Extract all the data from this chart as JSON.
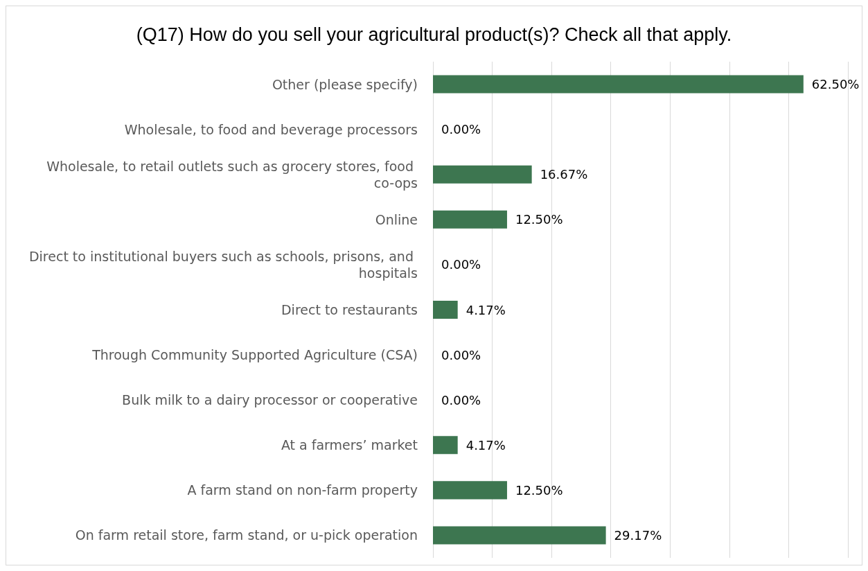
{
  "chart_data": {
    "type": "bar",
    "orientation": "horizontal",
    "title": "(Q17) How do you sell your agricultural product(s)? Check all that apply.",
    "categories": [
      "Other (please specify)",
      "Wholesale, to food and beverage processors",
      "Wholesale, to retail outlets such as grocery stores, food co-ops",
      "Online",
      "Direct to institutional buyers such as schools, prisons, and hospitals",
      "Direct to restaurants",
      "Through Community Supported Agriculture (CSA)",
      "Bulk milk to a dairy processor or cooperative",
      "At a farmers’ market",
      "A farm stand on non-farm property",
      "On farm retail store, farm stand, or u-pick operation"
    ],
    "values": [
      62.5,
      0,
      16.67,
      12.5,
      0,
      4.17,
      0,
      0,
      4.17,
      12.5,
      29.17
    ],
    "value_labels": [
      "62.50%",
      "0.00%",
      "16.67%",
      "12.50%",
      "0.00%",
      "4.17%",
      "0.00%",
      "0.00%",
      "4.17%",
      "12.50%",
      "29.17%"
    ],
    "color": "#3d7650",
    "xlim": [
      0,
      70
    ],
    "xticks": [
      {
        "value": 0,
        "label": null
      },
      {
        "value": 10,
        "label": null
      },
      {
        "value": 20,
        "label": null
      },
      {
        "value": 30,
        "label": null
      },
      {
        "value": 40,
        "label": null
      },
      {
        "value": 50,
        "label": null
      },
      {
        "value": 60,
        "label": null
      },
      {
        "value": 70,
        "label": null
      }
    ],
    "grid": "x",
    "tick_labels": "y"
  }
}
